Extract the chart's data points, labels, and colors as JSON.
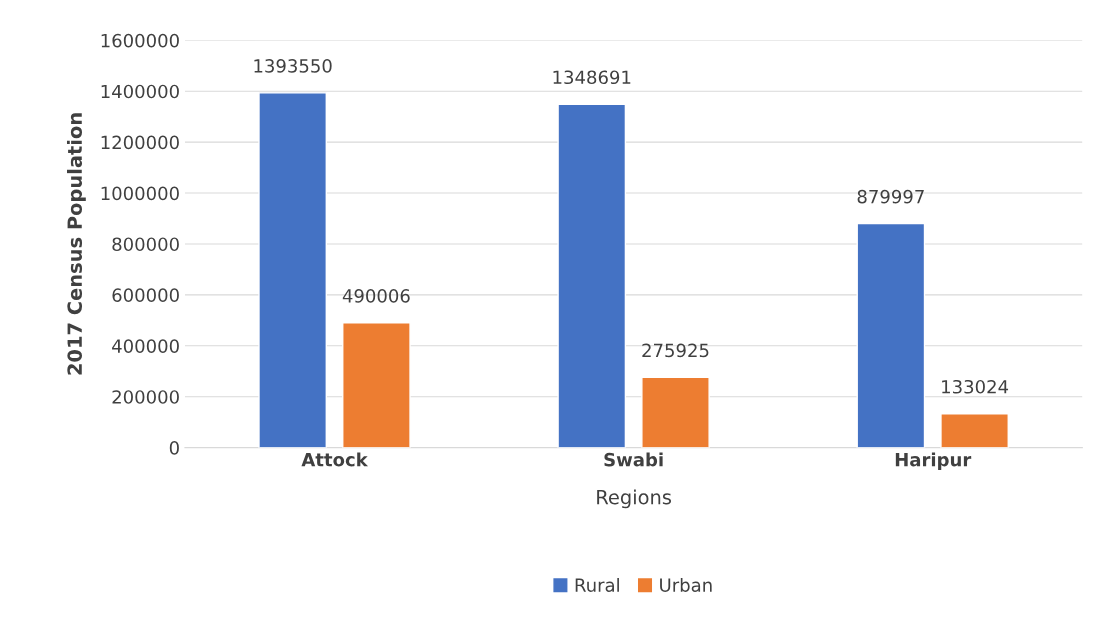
{
  "chart_data": {
    "type": "bar",
    "xlabel": "Regions",
    "ylabel": "2017 Census Population",
    "categories": [
      "Attock",
      "Swabi",
      "Haripur"
    ],
    "series": [
      {
        "name": "Rural",
        "color": "#4472c4",
        "values": [
          1393550,
          1348691,
          879997
        ]
      },
      {
        "name": "Urban",
        "color": "#ed7d31",
        "values": [
          490006,
          275925,
          133024
        ]
      }
    ],
    "ylim": [
      0,
      1600000
    ],
    "yticks": [
      0,
      200000,
      400000,
      600000,
      800000,
      1000000,
      1200000,
      1400000,
      1600000
    ],
    "grid": "y",
    "legend": "bottom",
    "data_labels": true
  }
}
